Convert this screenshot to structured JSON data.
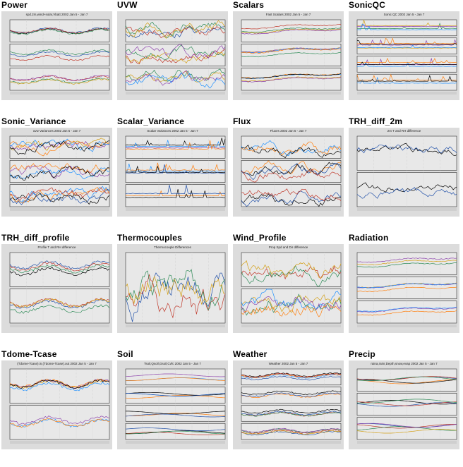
{
  "page": {
    "background": "#ffffff",
    "thumb_background": "#dcdcdc"
  },
  "thumbnails": [
    {
      "id": "power",
      "title": "Power",
      "plot_title": "spd.2m,wind+solar,Vbatt 2002 Jan 5 - Jan 7",
      "panels": 3,
      "kind": "line",
      "note": "wind+solar"
    },
    {
      "id": "uvw",
      "title": "UVW",
      "plot_title": "",
      "panels": 3,
      "kind": "noisy",
      "note": ""
    },
    {
      "id": "scalars",
      "title": "Scalars",
      "plot_title": "Fast Scalars 2002 Jan 5 - Jan 7",
      "panels": 3,
      "kind": "trend",
      "note": ""
    },
    {
      "id": "sonicqc",
      "title": "SonicQC",
      "plot_title": "Sonic QC 2002 Jan 5 - Jan 7",
      "panels": 4,
      "kind": "spike",
      "note": ""
    },
    {
      "id": "sonic_variance",
      "title": "Sonic_Variance",
      "plot_title": "uvw Variances 2002 Jan 5 - Jan 7",
      "panels": 3,
      "kind": "noisy",
      "note": ""
    },
    {
      "id": "scalar_variance",
      "title": "Scalar_Variance",
      "plot_title": "Scalar Variances 2002 Jan 5 - Jan 7",
      "panels": 3,
      "kind": "spike",
      "note": ""
    },
    {
      "id": "flux",
      "title": "Flux",
      "plot_title": "Fluxes 2002 Jan 5 - Jan 7",
      "panels": 3,
      "kind": "noisy",
      "note": ""
    },
    {
      "id": "trh_diff_2m",
      "title": "TRH_diff_2m",
      "plot_title": "2m T and RH difference",
      "panels": 2,
      "kind": "dark",
      "note": ""
    },
    {
      "id": "trh_diff_profile",
      "title": "TRH_diff_profile",
      "plot_title": "Profile T and RH difference",
      "panels": 2,
      "kind": "line",
      "note": ""
    },
    {
      "id": "thermocouples",
      "title": "Thermocouples",
      "plot_title": "Thermocouple Differences",
      "panels": 1,
      "kind": "noisy",
      "note": ""
    },
    {
      "id": "wind_profile",
      "title": "Wind_Profile",
      "plot_title": "Prop Spd and Dir difference",
      "panels": 2,
      "kind": "noisy",
      "note": ""
    },
    {
      "id": "radiation",
      "title": "Radiation",
      "plot_title": "",
      "panels": 3,
      "kind": "trend",
      "note": ""
    },
    {
      "id": "tdome_tcase",
      "title": "Tdome-Tcase",
      "plot_title": "(Tdome-Tcase).in,(Tdome-Tcase).out 2002 Jan 5 - Jan 7",
      "panels": 2,
      "kind": "line",
      "note": ""
    },
    {
      "id": "soil",
      "title": "Soil",
      "plot_title": "Tsoil,Qsoil,Gsoil,Cvfc 2002 Jan 5 - Jan 7",
      "panels": 4,
      "kind": "smooth",
      "note": ""
    },
    {
      "id": "weather",
      "title": "Weather",
      "plot_title": "Weather 2002 Jan 5 - Jan 7",
      "panels": 4,
      "kind": "line",
      "note": ""
    },
    {
      "id": "precip",
      "title": "Precip",
      "plot_title": "raina,rainr,Depth,snow,evap 2002 Jan 5 - Jan 7",
      "panels": 3,
      "kind": "smooth",
      "note": ""
    }
  ],
  "series_colors": [
    "#000000",
    "#1f4fa8",
    "#c0392b",
    "#2e8b57",
    "#d4a017",
    "#8e44ad",
    "#1e90ff",
    "#ff7f0e"
  ]
}
